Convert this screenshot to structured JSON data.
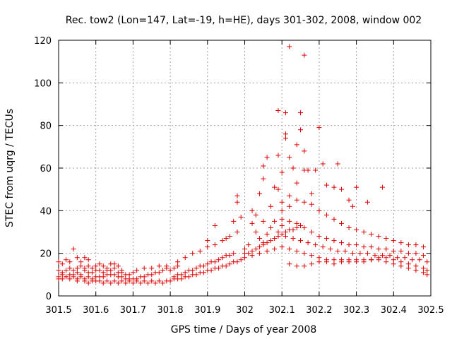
{
  "chart_data": {
    "type": "scatter",
    "title": "Rec. tow2 (Lon=147, Lat=-19, h=HE), days 301-302, 2008, window 002",
    "xlabel": "GPS time / Days of year 2008",
    "ylabel": "STEC from uqrg / TECUs",
    "xlim": [
      301.5,
      302.5
    ],
    "ylim": [
      0,
      120
    ],
    "grid": true,
    "marker": "+",
    "color": "#dd0000",
    "xticks": [
      {
        "value": 301.5,
        "label": "301.5"
      },
      {
        "value": 301.6,
        "label": "301.6"
      },
      {
        "value": 301.7,
        "label": "301.7"
      },
      {
        "value": 301.8,
        "label": "301.8"
      },
      {
        "value": 301.9,
        "label": "301.9"
      },
      {
        "value": 302.0,
        "label": "302"
      },
      {
        "value": 302.1,
        "label": "302.1"
      },
      {
        "value": 302.2,
        "label": "302.2"
      },
      {
        "value": 302.3,
        "label": "302.3"
      },
      {
        "value": 302.4,
        "label": "302.4"
      },
      {
        "value": 302.5,
        "label": "302.5"
      }
    ],
    "yticks": [
      {
        "value": 0,
        "label": "0"
      },
      {
        "value": 20,
        "label": "20"
      },
      {
        "value": 40,
        "label": "40"
      },
      {
        "value": 60,
        "label": "60"
      },
      {
        "value": 80,
        "label": "80"
      },
      {
        "value": 100,
        "label": "100"
      },
      {
        "value": 120,
        "label": "120"
      }
    ],
    "points": [
      [
        301.5,
        16
      ],
      [
        301.51,
        15
      ],
      [
        301.52,
        17
      ],
      [
        301.53,
        16
      ],
      [
        301.54,
        22
      ],
      [
        301.55,
        18
      ],
      [
        301.56,
        16
      ],
      [
        301.57,
        18
      ],
      [
        301.58,
        17
      ],
      [
        301.5,
        12
      ],
      [
        301.51,
        11
      ],
      [
        301.52,
        12
      ],
      [
        301.53,
        13
      ],
      [
        301.54,
        12
      ],
      [
        301.55,
        13
      ],
      [
        301.56,
        14
      ],
      [
        301.57,
        13
      ],
      [
        301.58,
        14
      ],
      [
        301.59,
        13
      ],
      [
        301.6,
        14
      ],
      [
        301.61,
        15
      ],
      [
        301.62,
        14
      ],
      [
        301.63,
        13
      ],
      [
        301.64,
        15
      ],
      [
        301.65,
        15
      ],
      [
        301.66,
        14
      ],
      [
        301.67,
        12
      ],
      [
        301.5,
        9
      ],
      [
        301.51,
        10
      ],
      [
        301.52,
        9
      ],
      [
        301.53,
        10
      ],
      [
        301.54,
        10
      ],
      [
        301.55,
        11
      ],
      [
        301.56,
        10
      ],
      [
        301.57,
        12
      ],
      [
        301.58,
        11
      ],
      [
        301.59,
        11
      ],
      [
        301.6,
        12
      ],
      [
        301.61,
        12
      ],
      [
        301.62,
        11
      ],
      [
        301.63,
        12
      ],
      [
        301.64,
        12
      ],
      [
        301.65,
        13
      ],
      [
        301.66,
        11
      ],
      [
        301.67,
        11
      ],
      [
        301.68,
        10
      ],
      [
        301.69,
        10
      ],
      [
        301.7,
        11
      ],
      [
        301.5,
        8
      ],
      [
        301.51,
        8
      ],
      [
        301.52,
        9
      ],
      [
        301.53,
        8
      ],
      [
        301.54,
        9
      ],
      [
        301.55,
        8
      ],
      [
        301.56,
        9
      ],
      [
        301.57,
        8
      ],
      [
        301.58,
        9
      ],
      [
        301.59,
        8
      ],
      [
        301.6,
        9
      ],
      [
        301.61,
        9
      ],
      [
        301.62,
        9
      ],
      [
        301.63,
        10
      ],
      [
        301.64,
        10
      ],
      [
        301.65,
        10
      ],
      [
        301.66,
        9
      ],
      [
        301.67,
        9
      ],
      [
        301.68,
        8
      ],
      [
        301.69,
        8
      ],
      [
        301.7,
        8
      ],
      [
        301.71,
        8
      ],
      [
        301.72,
        9
      ],
      [
        301.73,
        9
      ],
      [
        301.74,
        10
      ],
      [
        301.75,
        10
      ],
      [
        301.76,
        11
      ],
      [
        301.77,
        11
      ],
      [
        301.78,
        12
      ],
      [
        301.79,
        13
      ],
      [
        301.8,
        12
      ],
      [
        301.81,
        13
      ],
      [
        301.82,
        14
      ],
      [
        301.55,
        7
      ],
      [
        301.57,
        7
      ],
      [
        301.59,
        7
      ],
      [
        301.61,
        7
      ],
      [
        301.63,
        7
      ],
      [
        301.65,
        7
      ],
      [
        301.67,
        7
      ],
      [
        301.69,
        7
      ],
      [
        301.71,
        7
      ],
      [
        301.73,
        7
      ],
      [
        301.75,
        7
      ],
      [
        301.77,
        7
      ],
      [
        301.79,
        7
      ],
      [
        301.81,
        8
      ],
      [
        301.58,
        6
      ],
      [
        301.6,
        7
      ],
      [
        301.62,
        6
      ],
      [
        301.64,
        6
      ],
      [
        301.66,
        6
      ],
      [
        301.68,
        6
      ],
      [
        301.7,
        6
      ],
      [
        301.72,
        6
      ],
      [
        301.74,
        6
      ],
      [
        301.76,
        6
      ],
      [
        301.78,
        6
      ],
      [
        301.8,
        7
      ],
      [
        301.71,
        12
      ],
      [
        301.73,
        13
      ],
      [
        301.75,
        13
      ],
      [
        301.77,
        14
      ],
      [
        301.79,
        14
      ],
      [
        301.82,
        16
      ],
      [
        301.84,
        18
      ],
      [
        301.86,
        20
      ],
      [
        301.88,
        21
      ],
      [
        301.9,
        23
      ],
      [
        301.92,
        24
      ],
      [
        301.94,
        26
      ],
      [
        301.96,
        28
      ],
      [
        301.98,
        30
      ],
      [
        301.81,
        9
      ],
      [
        301.82,
        10
      ],
      [
        301.83,
        10
      ],
      [
        301.84,
        11
      ],
      [
        301.85,
        12
      ],
      [
        301.86,
        12
      ],
      [
        301.87,
        13
      ],
      [
        301.88,
        14
      ],
      [
        301.89,
        14
      ],
      [
        301.9,
        15
      ],
      [
        301.91,
        16
      ],
      [
        301.92,
        16
      ],
      [
        301.93,
        17
      ],
      [
        301.94,
        18
      ],
      [
        301.95,
        19
      ],
      [
        301.96,
        19
      ],
      [
        301.97,
        20
      ],
      [
        301.82,
        8
      ],
      [
        301.83,
        8
      ],
      [
        301.84,
        9
      ],
      [
        301.85,
        9
      ],
      [
        301.86,
        10
      ],
      [
        301.87,
        10
      ],
      [
        301.88,
        11
      ],
      [
        301.89,
        11
      ],
      [
        301.9,
        12
      ],
      [
        301.91,
        12
      ],
      [
        301.92,
        13
      ],
      [
        301.93,
        13
      ],
      [
        301.94,
        14
      ],
      [
        301.95,
        14
      ],
      [
        301.96,
        15
      ],
      [
        301.97,
        16
      ],
      [
        301.98,
        16
      ],
      [
        301.99,
        17
      ],
      [
        301.9,
        26
      ],
      [
        301.92,
        33
      ],
      [
        301.95,
        27
      ],
      [
        301.97,
        35
      ],
      [
        301.98,
        44
      ],
      [
        301.98,
        47
      ],
      [
        301.99,
        37
      ],
      [
        302.0,
        22
      ],
      [
        302.01,
        24
      ],
      [
        302.02,
        34
      ],
      [
        302.03,
        30
      ],
      [
        302.04,
        27
      ],
      [
        302.05,
        25
      ],
      [
        302.05,
        35
      ],
      [
        302.06,
        29
      ],
      [
        302.07,
        32
      ],
      [
        302.08,
        35
      ],
      [
        302.09,
        30
      ],
      [
        302.1,
        33
      ],
      [
        302.0,
        20
      ],
      [
        302.01,
        20
      ],
      [
        302.02,
        21
      ],
      [
        302.03,
        22
      ],
      [
        302.04,
        23
      ],
      [
        302.05,
        24
      ],
      [
        302.06,
        25
      ],
      [
        302.07,
        26
      ],
      [
        302.08,
        27
      ],
      [
        302.09,
        28
      ],
      [
        302.1,
        29
      ],
      [
        302.11,
        30
      ],
      [
        302.12,
        31
      ],
      [
        302.13,
        31
      ],
      [
        302.14,
        32
      ],
      [
        302.15,
        33
      ],
      [
        302.0,
        18
      ],
      [
        302.02,
        19
      ],
      [
        302.04,
        20
      ],
      [
        302.06,
        21
      ],
      [
        302.08,
        22
      ],
      [
        302.1,
        23
      ],
      [
        302.12,
        22
      ],
      [
        302.14,
        21
      ],
      [
        302.16,
        20
      ],
      [
        302.18,
        19
      ],
      [
        302.2,
        18
      ],
      [
        302.22,
        17
      ],
      [
        302.24,
        17
      ],
      [
        302.26,
        17
      ],
      [
        302.28,
        17
      ],
      [
        302.3,
        17
      ],
      [
        302.32,
        17
      ],
      [
        302.34,
        17
      ],
      [
        302.36,
        18
      ],
      [
        302.38,
        18
      ],
      [
        302.4,
        17
      ],
      [
        302.42,
        16
      ],
      [
        302.44,
        15
      ],
      [
        302.46,
        14
      ],
      [
        302.48,
        13
      ],
      [
        302.49,
        12
      ],
      [
        302.02,
        40
      ],
      [
        302.03,
        38
      ],
      [
        302.04,
        48
      ],
      [
        302.05,
        55
      ],
      [
        302.05,
        61
      ],
      [
        302.06,
        65
      ],
      [
        302.07,
        42
      ],
      [
        302.08,
        51
      ],
      [
        302.09,
        50
      ],
      [
        302.09,
        66
      ],
      [
        302.09,
        87
      ],
      [
        302.1,
        58
      ],
      [
        302.1,
        44
      ],
      [
        302.11,
        74
      ],
      [
        302.11,
        76
      ],
      [
        302.11,
        86
      ],
      [
        302.12,
        65
      ],
      [
        302.12,
        47
      ],
      [
        302.12,
        117
      ],
      [
        302.13,
        60
      ],
      [
        302.14,
        71
      ],
      [
        302.14,
        53
      ],
      [
        302.15,
        78
      ],
      [
        302.15,
        86
      ],
      [
        302.16,
        59
      ],
      [
        302.16,
        68
      ],
      [
        302.16,
        113
      ],
      [
        302.17,
        59
      ],
      [
        302.18,
        48
      ],
      [
        302.19,
        59
      ],
      [
        302.2,
        79
      ],
      [
        302.21,
        62
      ],
      [
        302.22,
        52
      ],
      [
        302.24,
        51
      ],
      [
        302.25,
        62
      ],
      [
        302.26,
        50
      ],
      [
        302.28,
        45
      ],
      [
        302.29,
        42
      ],
      [
        302.3,
        51
      ],
      [
        302.33,
        44
      ],
      [
        302.37,
        51
      ],
      [
        302.1,
        40
      ],
      [
        302.12,
        42
      ],
      [
        302.14,
        45
      ],
      [
        302.16,
        44
      ],
      [
        302.18,
        43
      ],
      [
        302.2,
        40
      ],
      [
        302.22,
        38
      ],
      [
        302.24,
        36
      ],
      [
        302.26,
        34
      ],
      [
        302.28,
        32
      ],
      [
        302.3,
        31
      ],
      [
        302.32,
        30
      ],
      [
        302.34,
        29
      ],
      [
        302.36,
        28
      ],
      [
        302.38,
        27
      ],
      [
        302.4,
        26
      ],
      [
        302.42,
        25
      ],
      [
        302.44,
        24
      ],
      [
        302.46,
        24
      ],
      [
        302.48,
        23
      ],
      [
        302.1,
        36
      ],
      [
        302.12,
        35
      ],
      [
        302.14,
        34
      ],
      [
        302.16,
        32
      ],
      [
        302.18,
        30
      ],
      [
        302.2,
        28
      ],
      [
        302.22,
        27
      ],
      [
        302.24,
        26
      ],
      [
        302.26,
        25
      ],
      [
        302.28,
        24
      ],
      [
        302.3,
        24
      ],
      [
        302.32,
        23
      ],
      [
        302.34,
        23
      ],
      [
        302.36,
        22
      ],
      [
        302.38,
        22
      ],
      [
        302.4,
        21
      ],
      [
        302.42,
        21
      ],
      [
        302.44,
        20
      ],
      [
        302.46,
        20
      ],
      [
        302.48,
        19
      ],
      [
        302.11,
        28
      ],
      [
        302.13,
        27
      ],
      [
        302.15,
        26
      ],
      [
        302.17,
        25
      ],
      [
        302.19,
        24
      ],
      [
        302.21,
        23
      ],
      [
        302.23,
        22
      ],
      [
        302.25,
        21
      ],
      [
        302.27,
        21
      ],
      [
        302.29,
        20
      ],
      [
        302.31,
        20
      ],
      [
        302.33,
        20
      ],
      [
        302.35,
        19
      ],
      [
        302.37,
        19
      ],
      [
        302.39,
        19
      ],
      [
        302.41,
        18
      ],
      [
        302.43,
        18
      ],
      [
        302.45,
        17
      ],
      [
        302.47,
        17
      ],
      [
        302.49,
        16
      ],
      [
        302.22,
        16
      ],
      [
        302.24,
        15
      ],
      [
        302.26,
        16
      ],
      [
        302.28,
        16
      ],
      [
        302.3,
        16
      ],
      [
        302.32,
        16
      ],
      [
        302.34,
        17
      ],
      [
        302.36,
        17
      ],
      [
        302.38,
        16
      ],
      [
        302.4,
        15
      ],
      [
        302.42,
        14
      ],
      [
        302.44,
        13
      ],
      [
        302.46,
        12
      ],
      [
        302.48,
        11
      ],
      [
        302.49,
        10
      ],
      [
        302.12,
        15
      ],
      [
        302.14,
        14
      ],
      [
        302.16,
        14
      ],
      [
        302.18,
        15
      ],
      [
        302.2,
        16
      ]
    ]
  }
}
